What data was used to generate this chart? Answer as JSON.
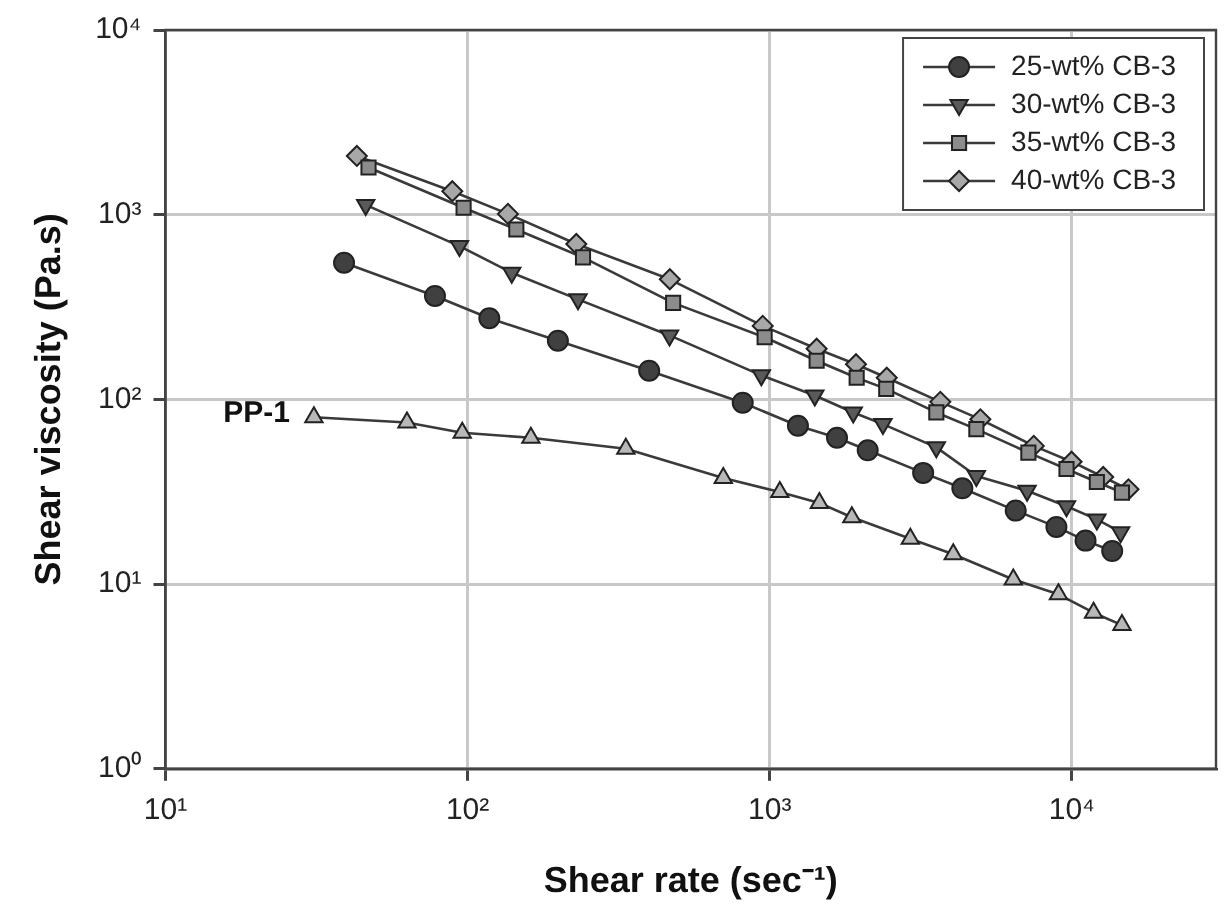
{
  "chart_data": {
    "type": "line",
    "xlabel": "Shear rate (sec⁻¹)",
    "ylabel": "Shear viscosity (Pa.s)",
    "log": "xy",
    "xlim": [
      10,
      30000
    ],
    "xticks": [
      {
        "value": 10,
        "label": "10¹"
      },
      {
        "value": 100,
        "label": "10²"
      },
      {
        "value": 1000,
        "label": "10³"
      },
      {
        "value": 10000,
        "label": "10⁴"
      }
    ],
    "ylim": [
      1,
      10000
    ],
    "yticks": [
      {
        "value": 1,
        "label": "10⁰"
      },
      {
        "value": 10,
        "label": "10¹"
      },
      {
        "value": 100,
        "label": "10²"
      },
      {
        "value": 1000,
        "label": "10³"
      },
      {
        "value": 10000,
        "label": "10⁴"
      }
    ],
    "grid": true,
    "legend": "top right",
    "line_style": "solid",
    "series": [
      {
        "name": "25-wt% CB-3",
        "color": "#404040",
        "marker": "circle",
        "x": [
          39,
          78,
          118,
          199,
          399,
          814,
          1240,
          1670,
          2110,
          3220,
          4340,
          6520,
          8890,
          11100,
          13600
        ],
        "values": [
          550,
          363,
          275,
          208,
          143,
          96,
          72,
          62,
          53,
          40,
          33,
          25,
          20.4,
          17.2,
          15.1
        ]
      },
      {
        "name": "30-wt% CB-3",
        "color": "#5a5a5a",
        "marker": "triangle-down",
        "x": [
          46,
          94,
          140,
          232,
          466,
          938,
          1410,
          1890,
          2370,
          3560,
          4830,
          7110,
          9600,
          12100,
          14500
        ],
        "values": [
          1130,
          676,
          485,
          348,
          222,
          135,
          105,
          85,
          73.5,
          55,
          38.5,
          32,
          26.4,
          22.4,
          19.1
        ]
      },
      {
        "name": "35-wt% CB-3",
        "color": "#8c8c8c",
        "marker": "square",
        "x": [
          47,
          97,
          145,
          241,
          479,
          962,
          1430,
          1940,
          2430,
          3560,
          4830,
          7180,
          9600,
          12100,
          14650
        ],
        "values": [
          1800,
          1090,
          832,
          587,
          333,
          217,
          162,
          131,
          114,
          85,
          69,
          51.5,
          42,
          35.7,
          31.3
        ]
      },
      {
        "name": "40-wt% CB-3",
        "color": "#a8a8a8",
        "marker": "diamond",
        "x": [
          43,
          89,
          136,
          229,
          467,
          948,
          1430,
          1930,
          2440,
          3670,
          4980,
          7480,
          9980,
          12700,
          15400
        ],
        "values": [
          2080,
          1340,
          1010,
          694,
          447,
          250,
          188,
          155,
          131,
          97,
          78,
          56,
          46,
          38,
          32.6
        ]
      },
      {
        "color": "#b8b8b8",
        "marker": "triangle",
        "x": [
          31,
          63,
          96,
          162,
          334,
          702,
          1080,
          1460,
          1870,
          2920,
          4050,
          6400,
          9030,
          11800,
          14650
        ],
        "values": [
          80,
          75,
          66,
          62,
          54,
          37.5,
          31.5,
          27.5,
          23,
          17.6,
          14.5,
          10.6,
          8.8,
          7,
          6
        ]
      }
    ],
    "annotations": [
      {
        "text": "PP-1",
        "x": 31,
        "y": 80
      }
    ]
  }
}
